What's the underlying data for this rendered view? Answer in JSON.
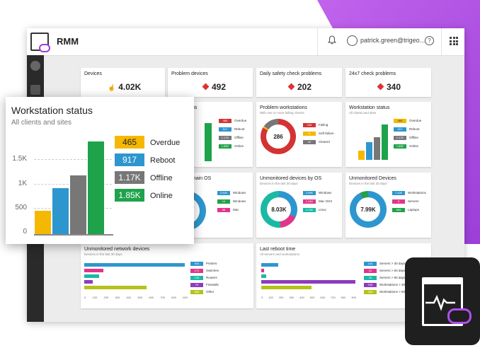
{
  "app": {
    "title": "RMM",
    "user": "patrick.green@trigeo...",
    "help": "?"
  },
  "stat_cards": [
    {
      "title": "Devices",
      "value": "4.02K"
    },
    {
      "title": "Problem devices",
      "value": "492"
    },
    {
      "title": "Daily safety check problems",
      "value": "202"
    },
    {
      "title": "24x7 check problems",
      "value": "340"
    }
  ],
  "workstation_mini": {
    "title_partial": "us",
    "legend": [
      {
        "v": "465",
        "l": "Overdue"
      },
      {
        "v": "917",
        "l": "Reboot"
      },
      {
        "v": "1.17K",
        "l": "Offline"
      },
      {
        "v": "1.85K",
        "l": "Online"
      }
    ]
  },
  "problem_workstations": {
    "title": "Problem workstations",
    "subtitle": "With one or more failing checks",
    "center": "286",
    "legend": [
      {
        "v": "236",
        "l": "Failing"
      },
      {
        "v": "8",
        "l": "Soft failure"
      },
      {
        "v": "42",
        "l": "Cleared"
      }
    ]
  },
  "workstation_status_card": {
    "title": "Workstation status",
    "subtitle": "All clients and sites",
    "legend": [
      {
        "v": "465",
        "l": "Overdue"
      },
      {
        "v": "917",
        "l": "Reboot"
      },
      {
        "v": "1.17K",
        "l": "Offline"
      },
      {
        "v": "1.85K",
        "l": "Online"
      }
    ]
  },
  "os_mini": {
    "title_partial": "main OS",
    "legend": [
      {
        "v": "3.92K",
        "l": "Windows"
      },
      {
        "v": "14",
        "l": "Windows"
      },
      {
        "v": "88",
        "l": "Mac"
      }
    ]
  },
  "unmonitored_os": {
    "title": "Unmonitored devices by OS",
    "subtitle": "Devices in the last 30 days",
    "center": "8.03K",
    "legend": [
      {
        "v": "2.59K",
        "l": "Windows"
      },
      {
        "v": "1.31K",
        "l": "Mac OSX"
      },
      {
        "v": "4.13K",
        "l": "Linux"
      }
    ]
  },
  "unmonitored_devices": {
    "title": "Unmonitored Devices",
    "subtitle": "Devices in the last 30 days",
    "center": "7.99K",
    "legend": [
      {
        "v": "7.42K",
        "l": "Workstations"
      },
      {
        "v": "5",
        "l": "Servers"
      },
      {
        "v": "569",
        "l": "Laptops"
      }
    ]
  },
  "network_devices": {
    "title": "Unmonitored network devices",
    "subtitle": "Devices in the last 30 days",
    "ticks": [
      "0",
      "100",
      "200",
      "300",
      "400",
      "500",
      "600",
      "700",
      "800",
      "900"
    ],
    "legend": [
      {
        "v": "904",
        "l": "Printers"
      },
      {
        "v": "172",
        "l": "Switches"
      },
      {
        "v": "135",
        "l": "Routers"
      },
      {
        "v": "75",
        "l": "Firewalls"
      },
      {
        "v": "556",
        "l": "Other"
      }
    ]
  },
  "reboot": {
    "title": "Last reboot time",
    "subtitle": "All servers and workstations",
    "ticks": [
      "0",
      "100",
      "200",
      "300",
      "400",
      "500",
      "600",
      "700",
      "800",
      "900"
    ],
    "legend": [
      {
        "v": "144",
        "l": "Servers > 30 days"
      },
      {
        "v": "12",
        "l": "Servers > 60 days"
      },
      {
        "v": "34",
        "l": "Servers > 90 days"
      },
      {
        "v": "945",
        "l": "Workstations > 30 days"
      },
      {
        "v": "496",
        "l": "Workstations > 60 days"
      }
    ]
  },
  "overlay": {
    "title": "Workstation status",
    "subtitle": "All clients and sites",
    "y_ticks": [
      "1.5K",
      "1K",
      "500",
      "0"
    ],
    "legend": [
      {
        "value": "465",
        "label": "Overdue",
        "color": "#f5b800"
      },
      {
        "value": "917",
        "label": "Reboot",
        "color": "#2e96cf"
      },
      {
        "value": "1.17K",
        "label": "Offline",
        "color": "#777777"
      },
      {
        "value": "1.85K",
        "label": "Online",
        "color": "#1ea34b"
      }
    ]
  },
  "chart_data": {
    "type": "bar",
    "categories": [
      "Overdue",
      "Reboot",
      "Offline",
      "Online"
    ],
    "values": [
      465,
      917,
      1170,
      1850
    ],
    "title": "Workstation status",
    "subtitle": "All clients and sites",
    "ylim": [
      0,
      2000
    ],
    "y_ticks": [
      0,
      500,
      1000,
      1500
    ],
    "colors": [
      "#f5b800",
      "#2e96cf",
      "#777777",
      "#1ea34b"
    ],
    "legend": "right"
  },
  "colors": {
    "overdue": "#f5b800",
    "reboot": "#2e96cf",
    "offline": "#777777",
    "online": "#1ea34b",
    "danger": "#d33333",
    "purple": "#b14ef0",
    "mac": "#e2358a",
    "pink": "#e2358a",
    "olive": "#b5c21a",
    "violet": "#8e3bbf"
  },
  "icons": [
    "bell-icon",
    "user-icon",
    "help-icon",
    "grid-icon",
    "warning-icon",
    "hand-icon",
    "rmm-logo-icon"
  ]
}
